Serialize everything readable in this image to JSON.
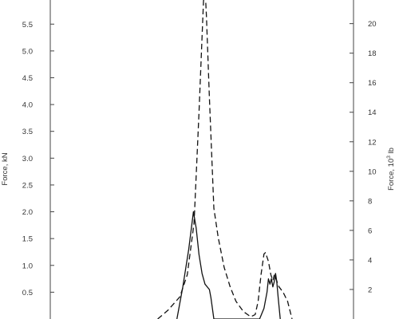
{
  "chart_data": {
    "type": "line",
    "y_left": {
      "label": "Force,  kN",
      "range": [
        0.0,
        5.95
      ],
      "ticks": [
        0.5,
        1.0,
        1.5,
        2.0,
        2.5,
        3.0,
        3.5,
        4.0,
        4.5,
        5.0,
        5.5
      ],
      "tick_labels": [
        "0.5",
        "1.0",
        "1.5",
        "2.0",
        "2.5",
        "3.0",
        "3.5",
        "4.0",
        "4.5",
        "5.0",
        "5.5"
      ]
    },
    "y_right": {
      "label_main": "Force, 10",
      "label_sup": "3",
      "label_unit": " lb",
      "range": [
        0.0,
        21.6
      ],
      "ticks": [
        2,
        4,
        6,
        8,
        10,
        12,
        14,
        16,
        18,
        20
      ],
      "tick_labels": [
        "2",
        "4",
        "6",
        "8",
        "10",
        "12",
        "14",
        "16",
        "18",
        "20"
      ]
    },
    "x_range": [
      0,
      100
    ],
    "grid": false,
    "series": [
      {
        "style": "solid",
        "axis": "left",
        "points": [
          [
            41.0,
            0.0
          ],
          [
            43.0,
            0.6
          ],
          [
            45.0,
            1.3
          ],
          [
            46.6,
            2.0
          ],
          [
            47.5,
            1.7
          ],
          [
            48.5,
            1.2
          ],
          [
            49.5,
            0.85
          ],
          [
            50.5,
            0.65
          ],
          [
            52.0,
            0.55
          ],
          [
            52.5,
            0.4
          ],
          [
            53.5,
            0.0
          ],
          [
            69.0,
            0.0
          ],
          [
            70.5,
            0.2
          ],
          [
            71.5,
            0.5
          ],
          [
            72.0,
            0.75
          ],
          [
            72.5,
            0.65
          ],
          [
            73.0,
            0.75
          ],
          [
            73.5,
            0.6
          ],
          [
            74.0,
            0.7
          ],
          [
            74.4,
            0.85
          ],
          [
            74.8,
            0.7
          ],
          [
            75.3,
            0.4
          ],
          [
            76.0,
            0.0
          ]
        ]
      },
      {
        "style": "dashed",
        "axis": "right",
        "points": [
          [
            34.5,
            0.0
          ],
          [
            38.0,
            0.6
          ],
          [
            42.0,
            1.5
          ],
          [
            44.5,
            3.0
          ],
          [
            46.8,
            6.5
          ],
          [
            48.5,
            14.0
          ],
          [
            50.0,
            21.5
          ],
          [
            50.5,
            22.5
          ],
          [
            51.0,
            20.5
          ],
          [
            52.0,
            15.0
          ],
          [
            53.5,
            7.5
          ],
          [
            55.0,
            5.5
          ],
          [
            57.0,
            3.5
          ],
          [
            59.0,
            2.2
          ],
          [
            61.0,
            1.2
          ],
          [
            63.5,
            0.5
          ],
          [
            66.0,
            0.15
          ],
          [
            67.5,
            0.3
          ],
          [
            68.5,
            1.2
          ],
          [
            69.5,
            3.0
          ],
          [
            70.5,
            4.4
          ],
          [
            71.0,
            4.5
          ],
          [
            72.0,
            3.9
          ],
          [
            72.8,
            3.0
          ],
          [
            73.5,
            2.6
          ],
          [
            74.0,
            3.0
          ],
          [
            74.6,
            2.7
          ],
          [
            75.5,
            2.2
          ],
          [
            77.0,
            1.8
          ],
          [
            78.5,
            1.2
          ],
          [
            80.0,
            0.0
          ]
        ]
      }
    ]
  }
}
